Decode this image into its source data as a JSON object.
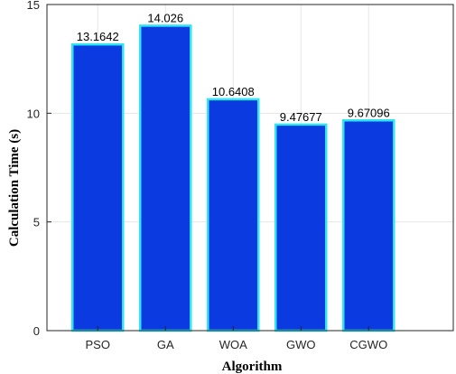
{
  "chart_data": {
    "type": "bar",
    "categories": [
      "PSO",
      "GA",
      "WOA",
      "GWO",
      "CGWO"
    ],
    "values": [
      13.1642,
      14.026,
      10.6408,
      9.47677,
      9.67096
    ],
    "data_labels": [
      "13.1642",
      "14.026",
      "10.6408",
      "9.47677",
      "9.67096"
    ],
    "title": "",
    "xlabel": "Algorithm",
    "ylabel": "Calculation Time (s)",
    "ylim": [
      0,
      15
    ],
    "yticks": [
      0,
      5,
      10,
      15
    ],
    "grid": true,
    "bar_color": "#0a3ae0",
    "bar_edge_color": "#2ee6f0"
  }
}
